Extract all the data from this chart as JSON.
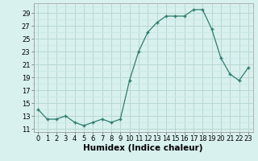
{
  "x": [
    0,
    1,
    2,
    3,
    4,
    5,
    6,
    7,
    8,
    9,
    10,
    11,
    12,
    13,
    14,
    15,
    16,
    17,
    18,
    19,
    20,
    21,
    22,
    23
  ],
  "y": [
    14,
    12.5,
    12.5,
    13,
    12,
    11.5,
    12,
    12.5,
    12,
    12.5,
    18.5,
    23,
    26,
    27.5,
    28.5,
    28.5,
    28.5,
    29.5,
    29.5,
    26.5,
    22,
    19.5,
    18.5,
    20.5
  ],
  "line_color": "#2e7d6e",
  "marker_color": "#2e7d6e",
  "bg_color": "#d8f0ee",
  "grid_major_color": "#b8d8d4",
  "grid_minor_color": "#c8e8e4",
  "xlabel": "Humidex (Indice chaleur)",
  "ylabel_ticks": [
    11,
    13,
    15,
    17,
    19,
    21,
    23,
    25,
    27,
    29
  ],
  "xlim": [
    -0.5,
    23.5
  ],
  "ylim": [
    10.5,
    30.5
  ],
  "xticks": [
    0,
    1,
    2,
    3,
    4,
    5,
    6,
    7,
    8,
    9,
    10,
    11,
    12,
    13,
    14,
    15,
    16,
    17,
    18,
    19,
    20,
    21,
    22,
    23
  ],
  "axis_fontsize": 6.5,
  "tick_fontsize": 6.0,
  "xlabel_fontsize": 7.5
}
